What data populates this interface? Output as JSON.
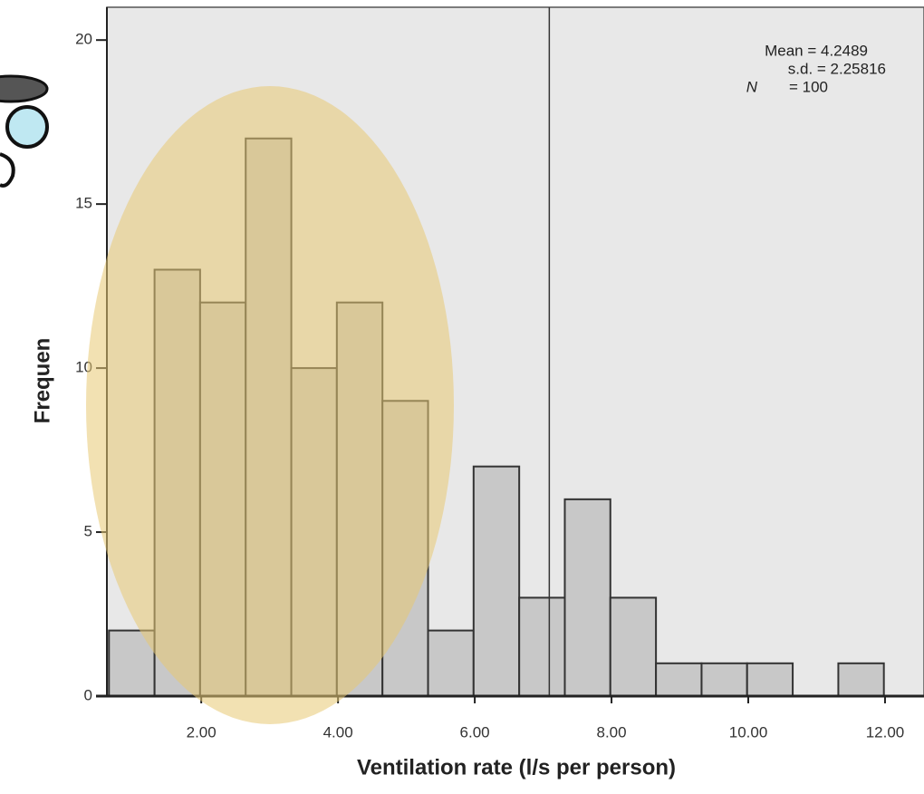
{
  "chart_data": {
    "type": "histogram",
    "x_label": "Ventilation rate (l/s per person)",
    "y_label": "Frequen",
    "bins": [
      0.65,
      1.317,
      1.983,
      2.65,
      3.317,
      3.983,
      4.65,
      5.317,
      5.983,
      6.65,
      7.317,
      7.983,
      8.65,
      9.317,
      9.983,
      10.65,
      11.317,
      11.983
    ],
    "values": [
      2,
      13,
      12,
      17,
      10,
      12,
      9,
      2,
      7,
      3,
      6,
      3,
      1,
      1,
      1,
      0,
      1
    ],
    "color": "#c8c8c8",
    "reference_line": 7.09,
    "xlim": [
      0.62,
      12.57
    ],
    "ylim": [
      0,
      21
    ],
    "xticks": [
      {
        "value": 2,
        "label": "2.00"
      },
      {
        "value": 4,
        "label": "4.00"
      },
      {
        "value": 6,
        "label": "6.00"
      },
      {
        "value": 8,
        "label": "8.00"
      },
      {
        "value": 10,
        "label": "10.00"
      },
      {
        "value": 12,
        "label": "12.00"
      }
    ],
    "yticks": [
      0,
      5,
      10,
      15,
      20
    ],
    "stats": {
      "mean": "Mean = 4.2489",
      "sd": "s.d. = 2.25816",
      "n_symbol": "N",
      "n_text": "= 100"
    }
  }
}
